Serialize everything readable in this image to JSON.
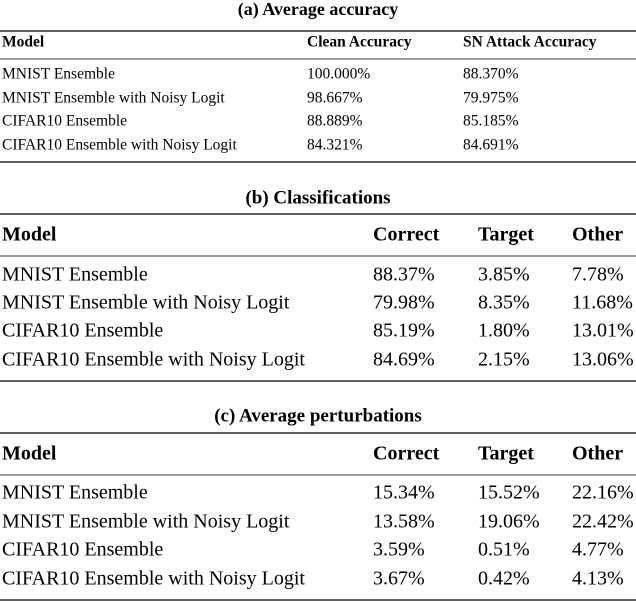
{
  "tables": [
    {
      "title": "(a) Average accuracy",
      "header": [
        "Model",
        "Clean Accuracy",
        "SN Attack Accuracy"
      ],
      "rows": [
        [
          "MNIST Ensemble",
          "100.000%",
          "88.370%"
        ],
        [
          "MNIST Ensemble with Noisy Logit",
          "98.667%",
          "79.975%"
        ],
        [
          "CIFAR10 Ensemble",
          "88.889%",
          "85.185%"
        ],
        [
          "CIFAR10 Ensemble with Noisy Logit",
          "84.321%",
          "84.691%"
        ]
      ]
    },
    {
      "title": "(b) Classifications",
      "header": [
        "Model",
        "Correct",
        "Target",
        "Other"
      ],
      "rows": [
        [
          "MNIST Ensemble",
          "88.37%",
          "3.85%",
          "7.78%"
        ],
        [
          "MNIST Ensemble with Noisy Logit",
          "79.98%",
          "8.35%",
          "11.68%"
        ],
        [
          "CIFAR10 Ensemble",
          "85.19%",
          "1.80%",
          "13.01%"
        ],
        [
          "CIFAR10 Ensemble with Noisy Logit",
          "84.69%",
          "2.15%",
          "13.06%"
        ]
      ]
    },
    {
      "title": "(c) Average perturbations",
      "header": [
        "Model",
        "Correct",
        "Target",
        "Other"
      ],
      "rows": [
        [
          "MNIST Ensemble",
          "15.34%",
          "15.52%",
          "22.16%"
        ],
        [
          "MNIST Ensemble with Noisy Logit",
          "13.58%",
          "19.06%",
          "22.42%"
        ],
        [
          "CIFAR10 Ensemble",
          "3.59%",
          "0.51%",
          "4.77%"
        ],
        [
          "CIFAR10 Ensemble with Noisy Logit",
          "3.67%",
          "0.42%",
          "4.13%"
        ]
      ]
    }
  ]
}
